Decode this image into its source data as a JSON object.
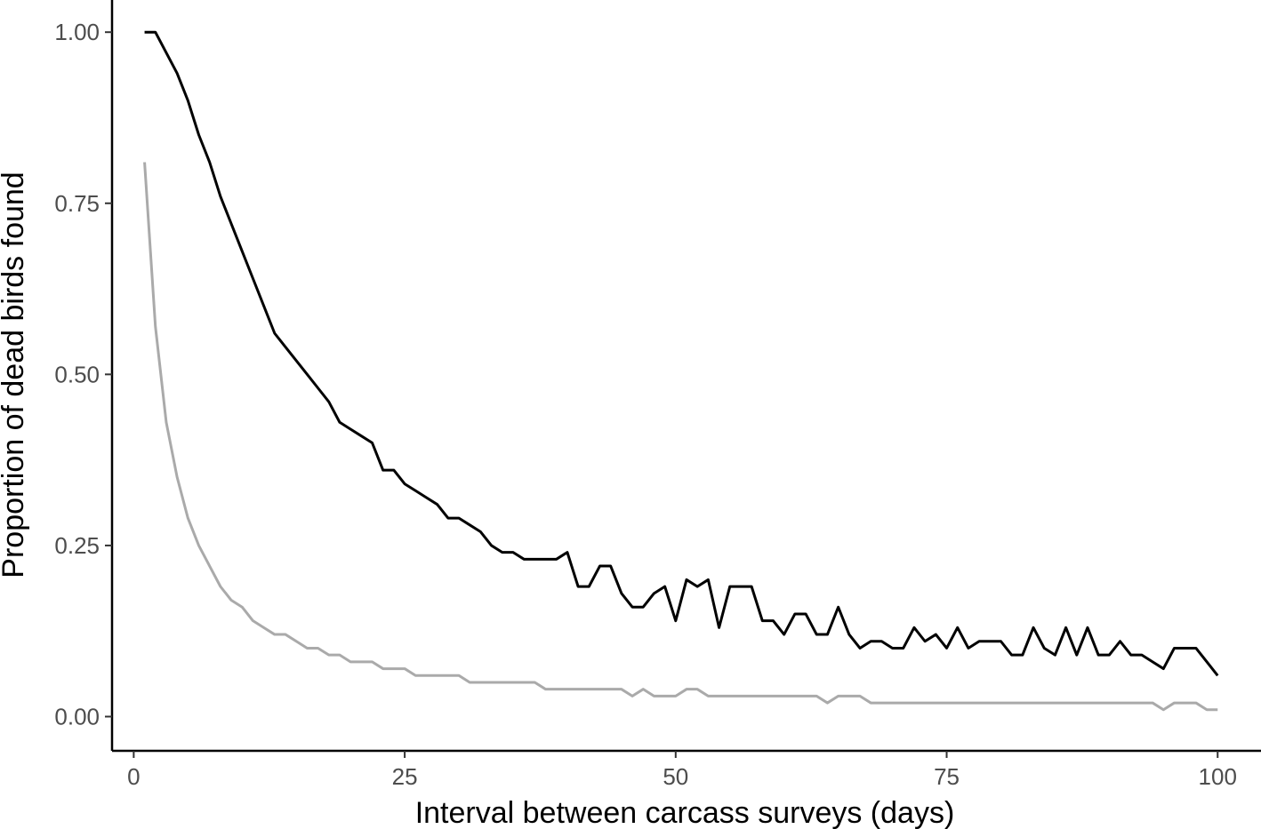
{
  "chart_data": {
    "type": "line",
    "xlabel": "Interval between carcass surveys (days)",
    "ylabel": "Proportion of dead birds found",
    "xlim": [
      -2,
      104
    ],
    "ylim": [
      -0.05,
      1.047
    ],
    "x_ticks": [
      0,
      25,
      50,
      75,
      100
    ],
    "x_tick_labels": [
      "0",
      "25",
      "50",
      "75",
      "100"
    ],
    "y_ticks": [
      0,
      0.25,
      0.5,
      0.75,
      1.0
    ],
    "y_tick_labels": [
      "0.00",
      "0.25",
      "0.50",
      "0.75",
      "1.00"
    ],
    "grid": false,
    "legend": "none",
    "series": [
      {
        "color": "#000000",
        "x": [
          1,
          2,
          3,
          4,
          5,
          6,
          7,
          8,
          9,
          10,
          11,
          12,
          13,
          14,
          15,
          16,
          17,
          18,
          19,
          20,
          21,
          22,
          23,
          24,
          25,
          26,
          27,
          28,
          29,
          30,
          31,
          32,
          33,
          34,
          35,
          36,
          37,
          38,
          39,
          40,
          41,
          42,
          43,
          44,
          45,
          46,
          47,
          48,
          49,
          50,
          51,
          52,
          53,
          54,
          55,
          56,
          57,
          58,
          59,
          60,
          61,
          62,
          63,
          64,
          65,
          66,
          67,
          68,
          69,
          70,
          71,
          72,
          73,
          74,
          75,
          76,
          77,
          78,
          79,
          80,
          81,
          82,
          83,
          84,
          85,
          86,
          87,
          88,
          89,
          90,
          91,
          92,
          93,
          94,
          95,
          96,
          97,
          98,
          99,
          100
        ],
        "values": [
          1.0,
          1.0,
          0.97,
          0.94,
          0.9,
          0.85,
          0.81,
          0.76,
          0.72,
          0.68,
          0.64,
          0.6,
          0.56,
          0.54,
          0.52,
          0.5,
          0.48,
          0.46,
          0.43,
          0.42,
          0.41,
          0.4,
          0.36,
          0.36,
          0.34,
          0.33,
          0.32,
          0.31,
          0.29,
          0.29,
          0.28,
          0.27,
          0.25,
          0.24,
          0.24,
          0.23,
          0.23,
          0.23,
          0.23,
          0.24,
          0.19,
          0.19,
          0.22,
          0.22,
          0.18,
          0.16,
          0.16,
          0.18,
          0.19,
          0.14,
          0.2,
          0.19,
          0.2,
          0.13,
          0.19,
          0.19,
          0.19,
          0.14,
          0.14,
          0.12,
          0.15,
          0.15,
          0.12,
          0.12,
          0.16,
          0.12,
          0.1,
          0.11,
          0.11,
          0.1,
          0.1,
          0.13,
          0.11,
          0.12,
          0.1,
          0.13,
          0.1,
          0.11,
          0.11,
          0.11,
          0.09,
          0.09,
          0.13,
          0.1,
          0.09,
          0.13,
          0.09,
          0.13,
          0.09,
          0.09,
          0.11,
          0.09,
          0.09,
          0.08,
          0.07,
          0.1,
          0.1,
          0.1,
          0.08,
          0.06
        ]
      },
      {
        "color": "#aaaaaa",
        "x": [
          1,
          2,
          3,
          4,
          5,
          6,
          7,
          8,
          9,
          10,
          11,
          12,
          13,
          14,
          15,
          16,
          17,
          18,
          19,
          20,
          21,
          22,
          23,
          24,
          25,
          26,
          27,
          28,
          29,
          30,
          31,
          32,
          33,
          34,
          35,
          36,
          37,
          38,
          39,
          40,
          41,
          42,
          43,
          44,
          45,
          46,
          47,
          48,
          49,
          50,
          51,
          52,
          53,
          54,
          55,
          56,
          57,
          58,
          59,
          60,
          61,
          62,
          63,
          64,
          65,
          66,
          67,
          68,
          69,
          70,
          71,
          72,
          73,
          74,
          75,
          76,
          77,
          78,
          79,
          80,
          81,
          82,
          83,
          84,
          85,
          86,
          87,
          88,
          89,
          90,
          91,
          92,
          93,
          94,
          95,
          96,
          97,
          98,
          99,
          100
        ],
        "values": [
          0.81,
          0.57,
          0.43,
          0.35,
          0.29,
          0.25,
          0.22,
          0.19,
          0.17,
          0.16,
          0.14,
          0.13,
          0.12,
          0.12,
          0.11,
          0.1,
          0.1,
          0.09,
          0.09,
          0.08,
          0.08,
          0.08,
          0.07,
          0.07,
          0.07,
          0.06,
          0.06,
          0.06,
          0.06,
          0.06,
          0.05,
          0.05,
          0.05,
          0.05,
          0.05,
          0.05,
          0.05,
          0.04,
          0.04,
          0.04,
          0.04,
          0.04,
          0.04,
          0.04,
          0.04,
          0.03,
          0.04,
          0.03,
          0.03,
          0.03,
          0.04,
          0.04,
          0.03,
          0.03,
          0.03,
          0.03,
          0.03,
          0.03,
          0.03,
          0.03,
          0.03,
          0.03,
          0.03,
          0.02,
          0.03,
          0.03,
          0.03,
          0.02,
          0.02,
          0.02,
          0.02,
          0.02,
          0.02,
          0.02,
          0.02,
          0.02,
          0.02,
          0.02,
          0.02,
          0.02,
          0.02,
          0.02,
          0.02,
          0.02,
          0.02,
          0.02,
          0.02,
          0.02,
          0.02,
          0.02,
          0.02,
          0.02,
          0.02,
          0.02,
          0.01,
          0.02,
          0.02,
          0.02,
          0.01,
          0.01
        ]
      }
    ]
  }
}
